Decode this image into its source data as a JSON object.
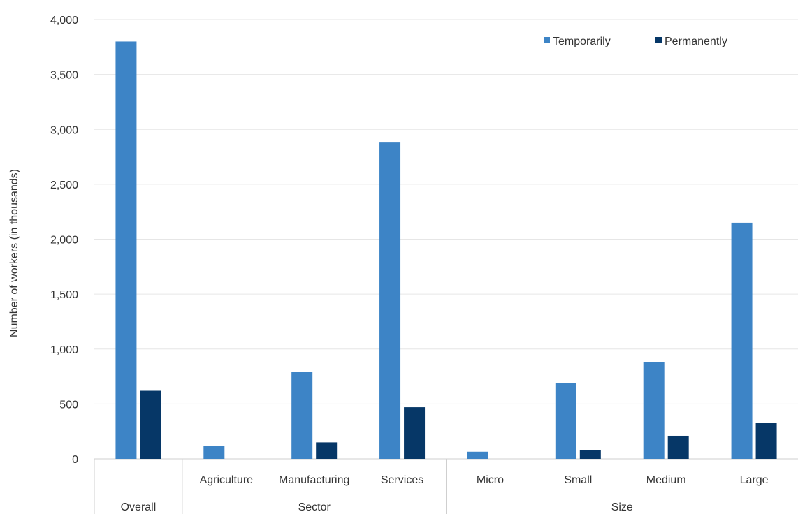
{
  "chart_data": {
    "type": "bar",
    "title": "",
    "xlabel": "",
    "ylabel": "Number of workers (in thousands)",
    "ylim": [
      0,
      4000
    ],
    "yticks": [
      0,
      500,
      1000,
      1500,
      2000,
      2500,
      3000,
      3500,
      4000
    ],
    "ytick_labels": [
      "0",
      "500",
      "1,000",
      "1,500",
      "2,000",
      "2,500",
      "3,000",
      "3,500",
      "4,000"
    ],
    "grid": true,
    "legend_position": "top-right",
    "categories": [
      "Overall",
      "Agriculture",
      "Manufacturing",
      "Services",
      "Micro",
      "Small",
      "Medium",
      "Large"
    ],
    "category_labels": [
      "",
      "Agriculture",
      "Manufacturing",
      "Services",
      "Micro",
      "Small",
      "Medium",
      "Large"
    ],
    "groups": [
      {
        "label": "Overall",
        "categories": [
          0
        ]
      },
      {
        "label": "Sector",
        "categories": [
          1,
          2,
          3
        ]
      },
      {
        "label": "Size",
        "categories": [
          4,
          5,
          6,
          7
        ]
      }
    ],
    "series": [
      {
        "name": "Temporarily",
        "color": "#3d84c6",
        "values": [
          3800,
          120,
          790,
          2880,
          65,
          690,
          880,
          2150
        ]
      },
      {
        "name": "Permanently",
        "color": "#063767",
        "values": [
          620,
          0,
          150,
          470,
          0,
          80,
          210,
          330
        ]
      }
    ]
  }
}
